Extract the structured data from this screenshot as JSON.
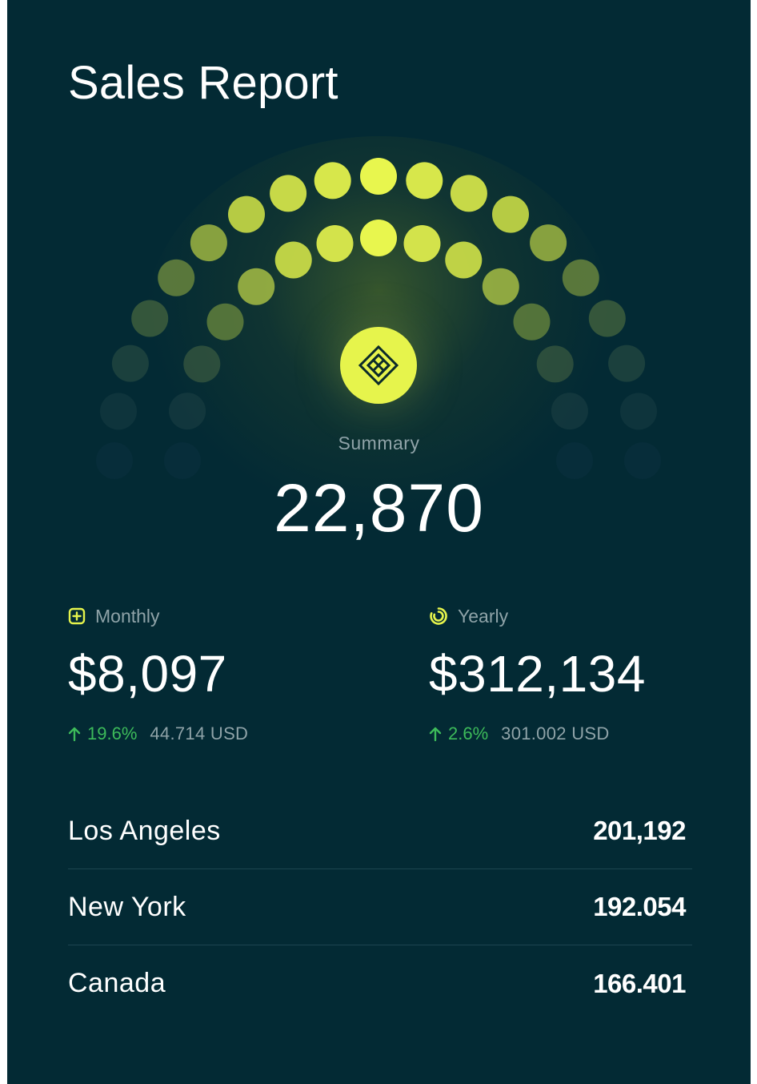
{
  "header": {
    "title": "Sales Report"
  },
  "summary": {
    "icon": "diamond-grid-icon",
    "label": "Summary",
    "value": "22,870"
  },
  "stats": [
    {
      "icon": "plus-square-icon",
      "label": "Monthly",
      "value": "$8,097",
      "change_icon": "arrow-up-icon",
      "change": "19.6%",
      "usd": "44.714 USD"
    },
    {
      "icon": "spinner-ring-icon",
      "label": "Yearly",
      "value": "$312,134",
      "change_icon": "arrow-up-icon",
      "change": "2.6%",
      "usd": "301.002 USD"
    }
  ],
  "locations": [
    {
      "name": "Los Angeles",
      "value": "201,192"
    },
    {
      "name": "New York",
      "value": "192.054"
    },
    {
      "name": "Canada",
      "value": "166.401"
    }
  ],
  "colors": {
    "background": "#032a34",
    "accent": "#e6f44c",
    "positive": "#3dbb5a",
    "muted": "#8fa3a8"
  }
}
